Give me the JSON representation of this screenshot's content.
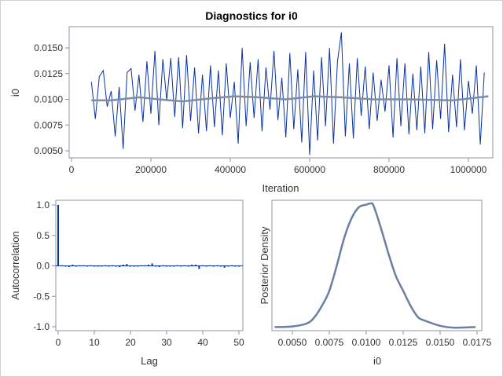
{
  "chart_data": [
    {
      "type": "line",
      "title": "Diagnostics for i0",
      "xlabel": "Iteration",
      "ylabel": "i0",
      "xlim": [
        0,
        1050000
      ],
      "ylim": [
        0.0045,
        0.0165
      ],
      "xticks": [
        "0",
        "200000",
        "400000",
        "600000",
        "800000",
        "1000000"
      ],
      "xtick_values": [
        0,
        200000,
        400000,
        600000,
        800000,
        1000000
      ],
      "yticks": [
        "0.0050",
        "0.0075",
        "0.0100",
        "0.0125",
        "0.0150"
      ],
      "ytick_values": [
        0.005,
        0.0075,
        0.01,
        0.0125,
        0.015
      ],
      "grid": false,
      "series": [
        {
          "x_start": 50000,
          "x_step": 10000,
          "values": [
            0.0117,
            0.0081,
            0.0122,
            0.0128,
            0.0093,
            0.0108,
            0.0064,
            0.0112,
            0.0052,
            0.0126,
            0.013,
            0.0089,
            0.0124,
            0.0078,
            0.0137,
            0.0086,
            0.0147,
            0.0075,
            0.0139,
            0.0099,
            0.014,
            0.0083,
            0.0141,
            0.0072,
            0.0143,
            0.0079,
            0.0131,
            0.0067,
            0.0124,
            0.0069,
            0.0133,
            0.0073,
            0.0128,
            0.0065,
            0.0135,
            0.0082,
            0.0117,
            0.0057,
            0.015,
            0.0074,
            0.0136,
            0.0082,
            0.0139,
            0.0069,
            0.0131,
            0.009,
            0.0147,
            0.008,
            0.0121,
            0.0063,
            0.0145,
            0.0071,
            0.0129,
            0.0058,
            0.0146,
            0.0046,
            0.0128,
            0.006,
            0.0141,
            0.0074,
            0.015,
            0.0057,
            0.0137,
            0.0165,
            0.0064,
            0.0135,
            0.0062,
            0.014,
            0.0084,
            0.0132,
            0.0071,
            0.0126,
            0.0079,
            0.0119,
            0.0088,
            0.0133,
            0.0063,
            0.014,
            0.0074,
            0.0135,
            0.0066,
            0.0125,
            0.007,
            0.0132,
            0.0067,
            0.0146,
            0.0071,
            0.0138,
            0.0081,
            0.0154,
            0.0068,
            0.0124,
            0.0073,
            0.0139,
            0.007,
            0.0118,
            0.0086,
            0.0133,
            0.0056,
            0.0126
          ],
          "color": "#0a33a0"
        },
        {
          "name": "",
          "x": [
            50000,
            100000,
            170000,
            220000,
            280000,
            350000,
            410000,
            470000,
            540000,
            610000,
            680000,
            760000,
            850000,
            960000,
            1050000
          ],
          "values": [
            0.0099,
            0.0099,
            0.0102,
            0.01,
            0.0098,
            0.0101,
            0.0103,
            0.0102,
            0.01,
            0.0103,
            0.0102,
            0.01,
            0.01,
            0.0099,
            0.0103
          ],
          "color": "#7d8ba3"
        }
      ]
    },
    {
      "type": "bar",
      "xlabel": "Lag",
      "ylabel": "Autocorrelation",
      "xlim": [
        0,
        51
      ],
      "ylim": [
        -1.05,
        1.05
      ],
      "xticks": [
        "0",
        "10",
        "20",
        "30",
        "40",
        "50"
      ],
      "xtick_values": [
        0,
        10,
        20,
        30,
        40,
        50
      ],
      "yticks": [
        "-1.0",
        "-0.5",
        "0.0",
        "0.5",
        "1.0"
      ],
      "ytick_values": [
        -1,
        -0.5,
        0,
        0.5,
        1
      ],
      "categories": [
        0,
        1,
        2,
        3,
        4,
        5,
        6,
        7,
        8,
        9,
        10,
        11,
        12,
        13,
        14,
        15,
        16,
        17,
        18,
        19,
        20,
        21,
        22,
        23,
        24,
        25,
        26,
        27,
        28,
        29,
        30,
        31,
        32,
        33,
        34,
        35,
        36,
        37,
        38,
        39,
        40,
        41,
        42,
        43,
        44,
        45,
        46,
        47,
        48,
        49,
        50
      ],
      "values": [
        1,
        0.01,
        0,
        -0.02,
        0.02,
        0,
        0.01,
        0.01,
        0,
        0.01,
        0,
        0,
        0,
        0.01,
        0,
        0.01,
        -0.01,
        -0.02,
        0.02,
        0.03,
        0,
        -0.01,
        0,
        0.01,
        0.01,
        0.02,
        0.04,
        -0.01,
        -0.02,
        0.01,
        0,
        0,
        0,
        0.01,
        0,
        0.01,
        0,
        0.02,
        0.02,
        -0.05,
        0.01,
        0,
        0.01,
        0,
        0.01,
        0,
        -0.03,
        0,
        0.01,
        0,
        0
      ],
      "color": "#0a33a0"
    },
    {
      "type": "line",
      "xlabel": "i0",
      "ylabel": "Posterior Density",
      "xlim": [
        0.0036,
        0.0178
      ],
      "xticks": [
        "0.0050",
        "0.0075",
        "0.0100",
        "0.0125",
        "0.0150",
        "0.0175"
      ],
      "xtick_values": [
        0.005,
        0.0075,
        0.01,
        0.0125,
        0.015,
        0.0175
      ],
      "yticks": [],
      "x": [
        0.0038,
        0.005,
        0.006,
        0.0065,
        0.007,
        0.0075,
        0.008,
        0.0085,
        0.009,
        0.0095,
        0.01,
        0.0103,
        0.0105,
        0.011,
        0.0115,
        0.012,
        0.0125,
        0.013,
        0.0135,
        0.014,
        0.015,
        0.016,
        0.0174
      ],
      "values": [
        0.01,
        0.015,
        0.04,
        0.09,
        0.18,
        0.3,
        0.5,
        0.72,
        0.88,
        0.97,
        0.99,
        1.0,
        0.98,
        0.8,
        0.6,
        0.42,
        0.3,
        0.18,
        0.09,
        0.06,
        0.02,
        0.005,
        0.01
      ],
      "color": "#6b7fa3"
    }
  ]
}
